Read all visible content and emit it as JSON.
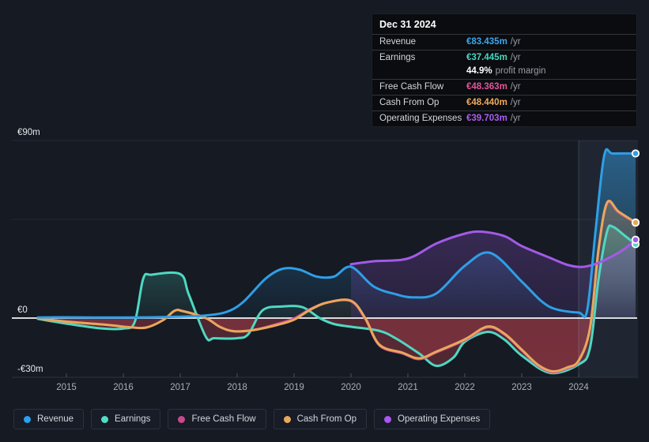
{
  "tooltip": {
    "date": "Dec 31 2024",
    "rows": [
      {
        "label": "Revenue",
        "value": "€83.435m",
        "suffix": "/yr",
        "color": "#3da5f0",
        "no_sep": false
      },
      {
        "label": "Earnings",
        "value": "€37.445m",
        "suffix": "/yr",
        "color": "#46d8bf",
        "no_sep": false
      },
      {
        "label": "",
        "value": "44.9%",
        "suffix": "profit margin",
        "color": "#ffffff",
        "no_sep": true
      },
      {
        "label": "Free Cash Flow",
        "value": "€48.363m",
        "suffix": "/yr",
        "color": "#e4549c",
        "no_sep": false
      },
      {
        "label": "Cash From Op",
        "value": "€48.440m",
        "suffix": "/yr",
        "color": "#efaa5b",
        "no_sep": false
      },
      {
        "label": "Operating Expenses",
        "value": "€39.703m",
        "suffix": "/yr",
        "color": "#ac5cf2",
        "no_sep": false
      }
    ]
  },
  "legend": [
    {
      "label": "Revenue",
      "color": "#2b9ff0"
    },
    {
      "label": "Earnings",
      "color": "#4fdec6"
    },
    {
      "label": "Free Cash Flow",
      "color": "#c9498e"
    },
    {
      "label": "Cash From Op",
      "color": "#e9a85a"
    },
    {
      "label": "Operating Expenses",
      "color": "#ab57ee"
    }
  ],
  "chart_data": {
    "type": "area",
    "unit": "€m",
    "x_range": [
      2014.5,
      2025
    ],
    "ylim": [
      -30,
      90
    ],
    "x_ticks": [
      "2015",
      "2016",
      "2017",
      "2018",
      "2019",
      "2020",
      "2021",
      "2022",
      "2023",
      "2024"
    ],
    "x_tick_years": [
      2015,
      2016,
      2017,
      2018,
      2019,
      2020,
      2021,
      2022,
      2023,
      2024
    ],
    "y_axis_labels": [
      {
        "value": 90,
        "label": "€90m"
      },
      {
        "value": 0,
        "label": "€0"
      },
      {
        "value": -30,
        "label": "-€30m"
      }
    ],
    "gridline_values": [
      90,
      50,
      -30
    ],
    "grid": true,
    "legend_position": "bottom-left",
    "highlight_from": 2024,
    "negative_fill_color": "#a23b47",
    "zero_line_color": "#f2f4f6",
    "series": [
      {
        "name": "Revenue",
        "color": "#2e9fe8",
        "end_label": "€83.435m",
        "points": [
          [
            2014.5,
            0.3
          ],
          [
            2015,
            0.4
          ],
          [
            2015.5,
            0.3
          ],
          [
            2016,
            0.3
          ],
          [
            2016.5,
            0.4
          ],
          [
            2017,
            0.7
          ],
          [
            2017.4,
            1.2
          ],
          [
            2017.8,
            3
          ],
          [
            2018.1,
            8
          ],
          [
            2018.5,
            20
          ],
          [
            2018.8,
            25
          ],
          [
            2019.1,
            24.5
          ],
          [
            2019.4,
            21
          ],
          [
            2019.7,
            21
          ],
          [
            2020,
            26
          ],
          [
            2020.4,
            16
          ],
          [
            2020.8,
            12
          ],
          [
            2021.1,
            10.5
          ],
          [
            2021.5,
            12.5
          ],
          [
            2022,
            26.5
          ],
          [
            2022.45,
            33
          ],
          [
            2023,
            18.5
          ],
          [
            2023.35,
            8.5
          ],
          [
            2023.6,
            4.5
          ],
          [
            2024,
            2.8
          ],
          [
            2024.15,
            4
          ],
          [
            2024.3,
            45
          ],
          [
            2024.45,
            82.5
          ],
          [
            2024.6,
            83.4
          ],
          [
            2025,
            83.435
          ]
        ]
      },
      {
        "name": "Earnings",
        "color": "#4fd8c2",
        "end_label": "€37.445m",
        "points": [
          [
            2014.5,
            -0.4
          ],
          [
            2015,
            -2.8
          ],
          [
            2015.6,
            -5.2
          ],
          [
            2016,
            -5.3
          ],
          [
            2016.2,
            -2
          ],
          [
            2016.35,
            20
          ],
          [
            2016.5,
            22
          ],
          [
            2017,
            22.3
          ],
          [
            2017.15,
            12
          ],
          [
            2017.45,
            -9.5
          ],
          [
            2017.6,
            -10.2
          ],
          [
            2018,
            -10.2
          ],
          [
            2018.2,
            -8
          ],
          [
            2018.45,
            4
          ],
          [
            2018.8,
            5.9
          ],
          [
            2019.15,
            5.5
          ],
          [
            2019.45,
            0
          ],
          [
            2019.7,
            -3
          ],
          [
            2020,
            -4.4
          ],
          [
            2020.5,
            -6.5
          ],
          [
            2020.8,
            -10.5
          ],
          [
            2021.2,
            -18
          ],
          [
            2021.5,
            -24.2
          ],
          [
            2021.8,
            -20
          ],
          [
            2022,
            -12
          ],
          [
            2022.4,
            -7
          ],
          [
            2022.7,
            -11
          ],
          [
            2023,
            -19
          ],
          [
            2023.5,
            -27.8
          ],
          [
            2024,
            -23.5
          ],
          [
            2024.2,
            -15
          ],
          [
            2024.35,
            20
          ],
          [
            2024.5,
            44
          ],
          [
            2024.6,
            46.3
          ],
          [
            2024.8,
            42
          ],
          [
            2025,
            37.445
          ]
        ]
      },
      {
        "name": "Free Cash Flow",
        "color": "#c94a8f",
        "end_label": "€48.363m",
        "points": [
          [
            2014.5,
            -0.2
          ],
          [
            2015,
            -1.8
          ],
          [
            2015.7,
            -3.4
          ],
          [
            2016.1,
            -4.6
          ],
          [
            2016.4,
            -4.8
          ],
          [
            2016.7,
            -1
          ],
          [
            2016.9,
            3.7
          ],
          [
            2017.05,
            3.5
          ],
          [
            2017.45,
            0
          ],
          [
            2017.7,
            -4.5
          ],
          [
            2017.95,
            -6.7
          ],
          [
            2018.3,
            -6
          ],
          [
            2018.7,
            -3
          ],
          [
            2019,
            -0.2
          ],
          [
            2019.3,
            4.8
          ],
          [
            2019.6,
            8
          ],
          [
            2020,
            8.5
          ],
          [
            2020.25,
            -0.4
          ],
          [
            2020.5,
            -13.9
          ],
          [
            2020.9,
            -17.9
          ],
          [
            2021.2,
            -20.8
          ],
          [
            2021.5,
            -17.4
          ],
          [
            2022,
            -11.2
          ],
          [
            2022.4,
            -4.7
          ],
          [
            2022.7,
            -8.4
          ],
          [
            2023,
            -16.4
          ],
          [
            2023.3,
            -24.4
          ],
          [
            2023.55,
            -27.4
          ],
          [
            2023.8,
            -25.4
          ],
          [
            2024,
            -21.9
          ],
          [
            2024.2,
            -5.4
          ],
          [
            2024.35,
            34.5
          ],
          [
            2024.5,
            58
          ],
          [
            2024.7,
            53.5
          ],
          [
            2025,
            48.363
          ]
        ]
      },
      {
        "name": "Cash From Op",
        "color": "#e9a75a",
        "end_label": "€48.440m",
        "points": [
          [
            2014.5,
            -0.2
          ],
          [
            2015,
            -1.8
          ],
          [
            2015.7,
            -3.4
          ],
          [
            2016.1,
            -4.6
          ],
          [
            2016.4,
            -4.8
          ],
          [
            2016.7,
            -1
          ],
          [
            2016.9,
            3.7
          ],
          [
            2017.05,
            3.5
          ],
          [
            2017.45,
            0
          ],
          [
            2017.7,
            -4.5
          ],
          [
            2017.95,
            -6.7
          ],
          [
            2018.3,
            -6
          ],
          [
            2018.7,
            -3.5
          ],
          [
            2019,
            -0.8
          ],
          [
            2019.3,
            4.5
          ],
          [
            2019.6,
            8
          ],
          [
            2020,
            8.8
          ],
          [
            2020.25,
            0
          ],
          [
            2020.5,
            -13.5
          ],
          [
            2020.9,
            -17.5
          ],
          [
            2021.2,
            -20.4
          ],
          [
            2021.5,
            -17
          ],
          [
            2022,
            -10.8
          ],
          [
            2022.4,
            -4.3
          ],
          [
            2022.7,
            -8
          ],
          [
            2023,
            -16
          ],
          [
            2023.3,
            -24
          ],
          [
            2023.55,
            -27
          ],
          [
            2023.8,
            -25
          ],
          [
            2024,
            -21.5
          ],
          [
            2024.2,
            -5
          ],
          [
            2024.35,
            35
          ],
          [
            2024.5,
            58.5
          ],
          [
            2024.7,
            54
          ],
          [
            2025,
            48.44
          ]
        ]
      },
      {
        "name": "Operating Expenses",
        "color": "#a35ae8",
        "end_label": "€39.703m",
        "points": [
          [
            2020,
            27.3
          ],
          [
            2020.4,
            28.8
          ],
          [
            2021,
            30.2
          ],
          [
            2021.5,
            37.8
          ],
          [
            2022,
            42.8
          ],
          [
            2022.3,
            43.8
          ],
          [
            2022.7,
            41.5
          ],
          [
            2023,
            36.5
          ],
          [
            2023.5,
            30.5
          ],
          [
            2023.8,
            27
          ],
          [
            2024.05,
            25.9
          ],
          [
            2024.3,
            27.5
          ],
          [
            2024.6,
            31.5
          ],
          [
            2024.8,
            35
          ],
          [
            2025,
            39.703
          ]
        ]
      }
    ]
  }
}
